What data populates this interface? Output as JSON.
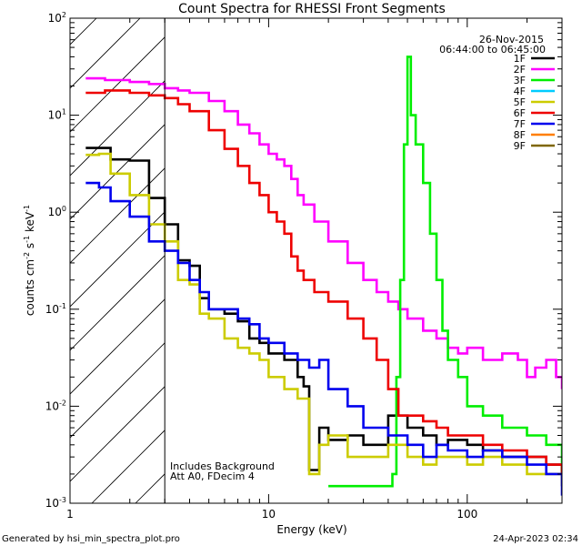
{
  "chart_data": {
    "type": "line",
    "title": "Count Spectra for RHESSI Front Segments",
    "xlabel": "Energy (keV)",
    "ylabel": "counts cm",
    "ylabel_sup1": "-2",
    "ylabel_mid1": " s",
    "ylabel_sup2": "-1",
    "ylabel_mid2": " keV",
    "ylabel_sup3": "-1",
    "xscale": "log",
    "yscale": "log",
    "xlim": [
      1,
      300
    ],
    "ylim": [
      0.001,
      100
    ],
    "x_ticks": [
      {
        "value": 1,
        "label": "1"
      },
      {
        "value": 10,
        "label": "10"
      },
      {
        "value": 100,
        "label": "100"
      }
    ],
    "y_ticks": [
      {
        "value": 0.001,
        "base": "10",
        "exp": "-3"
      },
      {
        "value": 0.01,
        "base": "10",
        "exp": "-2"
      },
      {
        "value": 0.1,
        "base": "10",
        "exp": "-1"
      },
      {
        "value": 1,
        "base": "10",
        "exp": "0"
      },
      {
        "value": 10,
        "base": "10",
        "exp": "1"
      },
      {
        "value": 100,
        "base": "10",
        "exp": "2"
      }
    ],
    "shaded_region": {
      "x_min": 1,
      "x_max": 3,
      "pattern": "diagonal-hatch"
    },
    "date": "26-Nov-2015",
    "time_range": "06:44:00 to 06:45:00",
    "annotations": [
      "Includes Background",
      "Att A0, FDecim 4"
    ],
    "legend": {
      "placement": "top-right"
    },
    "series": [
      {
        "name": "1F",
        "color": "#000000",
        "x": [
          1.2,
          1.4,
          1.6,
          2.0,
          2.5,
          3.0,
          3.5,
          4.0,
          4.5,
          5.0,
          6.0,
          7.0,
          8.0,
          9.0,
          10.0,
          12.0,
          14.0,
          15.0,
          16.0,
          18.0,
          20.0,
          25.0,
          30.0,
          40.0,
          50.0,
          60.0,
          70.0,
          80.0,
          100.0,
          120.0,
          150.0,
          200.0,
          250.0,
          300.0
        ],
        "values": [
          4.6,
          4.6,
          3.5,
          3.4,
          1.4,
          0.75,
          0.32,
          0.28,
          0.13,
          0.1,
          0.09,
          0.075,
          0.05,
          0.045,
          0.035,
          0.03,
          0.02,
          0.016,
          0.0022,
          0.006,
          0.0045,
          0.005,
          0.004,
          0.008,
          0.006,
          0.005,
          0.004,
          0.0045,
          0.004,
          0.0035,
          0.003,
          0.003,
          0.0025,
          0.0015
        ]
      },
      {
        "name": "2F",
        "color": "#ff00ff",
        "x": [
          1.2,
          1.5,
          2.0,
          2.5,
          3.0,
          3.5,
          4.0,
          5.0,
          6.0,
          7.0,
          8.0,
          9.0,
          10.0,
          11.0,
          12.0,
          13.0,
          14.0,
          15.0,
          17.0,
          20.0,
          25.0,
          30.0,
          35.0,
          40.0,
          45.0,
          50.0,
          60.0,
          70.0,
          80.0,
          90.0,
          100.0,
          120.0,
          150.0,
          180.0,
          200.0,
          220.0,
          250.0,
          280.0,
          300.0
        ],
        "values": [
          24.0,
          23.0,
          22.0,
          21.0,
          19.0,
          18.0,
          17.0,
          14.0,
          11.0,
          8.0,
          6.5,
          5.0,
          4.0,
          3.5,
          3.0,
          2.2,
          1.5,
          1.2,
          0.8,
          0.5,
          0.3,
          0.2,
          0.15,
          0.12,
          0.1,
          0.08,
          0.06,
          0.05,
          0.04,
          0.035,
          0.04,
          0.03,
          0.035,
          0.03,
          0.02,
          0.025,
          0.03,
          0.02,
          0.015
        ]
      },
      {
        "name": "3F",
        "color": "#00ee00",
        "x": [
          20.0,
          42.0,
          44.0,
          46.0,
          48.0,
          50.0,
          52.0,
          55.0,
          60.0,
          65.0,
          70.0,
          75.0,
          80.0,
          90.0,
          100.0,
          120.0,
          150.0,
          200.0,
          250.0,
          300.0
        ],
        "values": [
          0.0015,
          0.002,
          0.02,
          0.2,
          5.0,
          40.0,
          10.0,
          5.0,
          2.0,
          0.6,
          0.2,
          0.06,
          0.03,
          0.02,
          0.01,
          0.008,
          0.006,
          0.005,
          0.004,
          0.002
        ]
      },
      {
        "name": "4F",
        "color": "#00ccff",
        "x": [],
        "values": []
      },
      {
        "name": "5F",
        "color": "#cccc00",
        "x": [
          1.2,
          1.4,
          1.6,
          2.0,
          2.5,
          3.0,
          3.5,
          4.0,
          4.5,
          5.0,
          6.0,
          7.0,
          8.0,
          9.0,
          10.0,
          12.0,
          14.0,
          16.0,
          18.0,
          20.0,
          25.0,
          30.0,
          40.0,
          50.0,
          60.0,
          70.0,
          80.0,
          100.0,
          120.0,
          150.0,
          200.0,
          250.0,
          300.0
        ],
        "values": [
          3.9,
          4.0,
          2.5,
          1.5,
          0.75,
          0.5,
          0.2,
          0.18,
          0.09,
          0.08,
          0.05,
          0.04,
          0.035,
          0.03,
          0.02,
          0.015,
          0.012,
          0.002,
          0.004,
          0.005,
          0.003,
          0.003,
          0.004,
          0.003,
          0.0025,
          0.003,
          0.003,
          0.0025,
          0.003,
          0.0025,
          0.002,
          0.002,
          0.0015
        ]
      },
      {
        "name": "6F",
        "color": "#ee0000",
        "x": [
          1.2,
          1.5,
          2.0,
          2.5,
          3.0,
          3.5,
          4.0,
          5.0,
          6.0,
          7.0,
          8.0,
          9.0,
          10.0,
          11.0,
          12.0,
          13.0,
          14.0,
          15.0,
          17.0,
          20.0,
          25.0,
          30.0,
          35.0,
          40.0,
          45.0,
          50.0,
          60.0,
          70.0,
          80.0,
          100.0,
          120.0,
          150.0,
          200.0,
          250.0,
          300.0
        ],
        "values": [
          17.0,
          18.0,
          17.0,
          16.0,
          15.0,
          13.0,
          11.0,
          7.0,
          4.5,
          3.0,
          2.0,
          1.5,
          1.0,
          0.8,
          0.6,
          0.35,
          0.25,
          0.2,
          0.15,
          0.12,
          0.08,
          0.05,
          0.03,
          0.015,
          0.008,
          0.008,
          0.007,
          0.006,
          0.005,
          0.005,
          0.004,
          0.0035,
          0.003,
          0.0025,
          0.002
        ]
      },
      {
        "name": "7F",
        "color": "#0000ee",
        "x": [
          1.2,
          1.4,
          1.6,
          2.0,
          2.5,
          3.0,
          3.5,
          4.0,
          4.5,
          5.0,
          6.0,
          7.0,
          8.0,
          9.0,
          10.0,
          12.0,
          14.0,
          16.0,
          18.0,
          20.0,
          25.0,
          30.0,
          40.0,
          50.0,
          60.0,
          70.0,
          80.0,
          100.0,
          120.0,
          150.0,
          200.0,
          250.0,
          300.0
        ],
        "values": [
          2.0,
          1.8,
          1.3,
          0.9,
          0.5,
          0.4,
          0.3,
          0.2,
          0.15,
          0.1,
          0.1,
          0.08,
          0.07,
          0.05,
          0.045,
          0.035,
          0.03,
          0.025,
          0.03,
          0.015,
          0.01,
          0.006,
          0.005,
          0.004,
          0.003,
          0.004,
          0.0035,
          0.003,
          0.0035,
          0.003,
          0.0025,
          0.002,
          0.0012
        ]
      },
      {
        "name": "8F",
        "color": "#ff7f00",
        "x": [],
        "values": []
      },
      {
        "name": "9F",
        "color": "#7f6600",
        "x": [],
        "values": []
      }
    ]
  },
  "footer": {
    "generated_by": "Generated by hsi_min_spectra_plot.pro",
    "timestamp": "24-Apr-2023 02:34"
  }
}
